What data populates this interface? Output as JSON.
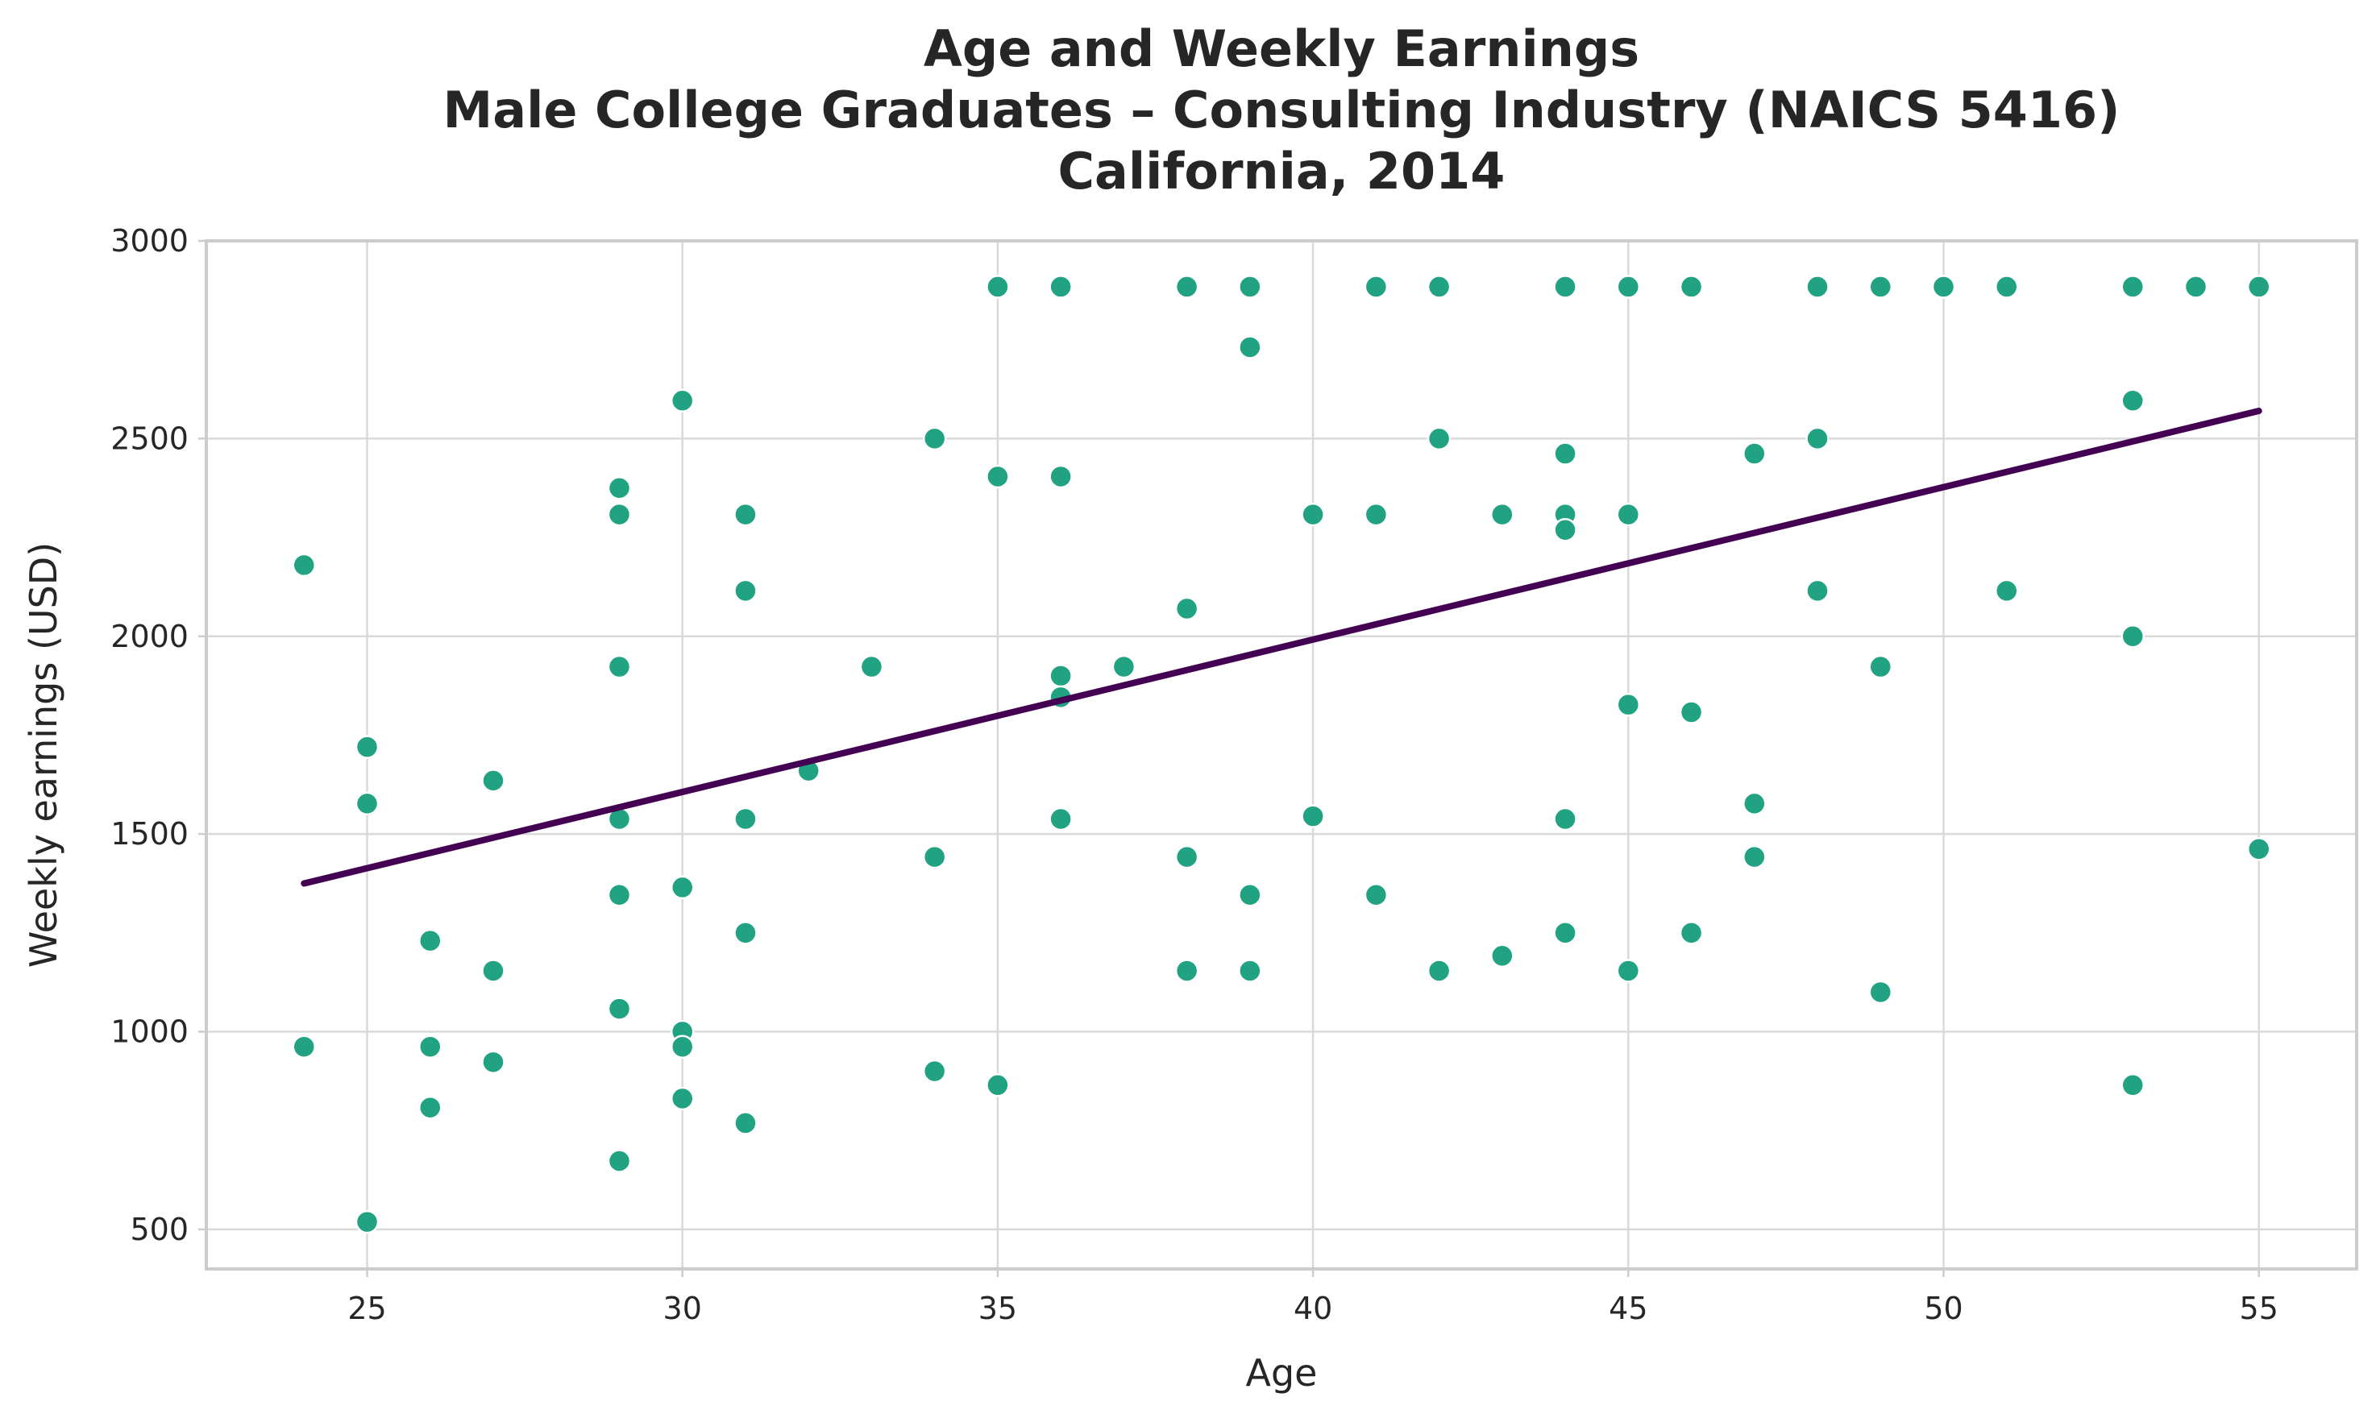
{
  "chart_data": {
    "type": "scatter",
    "title": [
      "Age and Weekly Earnings",
      "Male College Graduates – Consulting Industry (NAICS 5416)",
      "California, 2014"
    ],
    "xlabel": "Age",
    "ylabel": "Weekly earnings (USD)",
    "xlim": [
      22.45,
      56.55
    ],
    "ylim": [
      400,
      3000
    ],
    "xticks": [
      25,
      30,
      35,
      40,
      45,
      50,
      55
    ],
    "yticks": [
      500,
      1000,
      1500,
      2000,
      2500,
      3000
    ],
    "grid": true,
    "point_color": "#21a383",
    "line_color": "#440154",
    "trend_line": {
      "x": [
        24,
        55
      ],
      "y": [
        1375,
        2570
      ]
    },
    "points": [
      {
        "x": 24,
        "y": 2180
      },
      {
        "x": 24,
        "y": 962
      },
      {
        "x": 25,
        "y": 1720
      },
      {
        "x": 25,
        "y": 1577
      },
      {
        "x": 25,
        "y": 519
      },
      {
        "x": 26,
        "y": 1230
      },
      {
        "x": 26,
        "y": 962
      },
      {
        "x": 26,
        "y": 808
      },
      {
        "x": 27,
        "y": 1635
      },
      {
        "x": 27,
        "y": 1154
      },
      {
        "x": 27,
        "y": 923
      },
      {
        "x": 29,
        "y": 2375
      },
      {
        "x": 29,
        "y": 2308
      },
      {
        "x": 29,
        "y": 1923
      },
      {
        "x": 29,
        "y": 1538
      },
      {
        "x": 29,
        "y": 1346
      },
      {
        "x": 29,
        "y": 1058
      },
      {
        "x": 29,
        "y": 673
      },
      {
        "x": 30,
        "y": 2596
      },
      {
        "x": 30,
        "y": 1365
      },
      {
        "x": 30,
        "y": 1000
      },
      {
        "x": 30,
        "y": 962
      },
      {
        "x": 30,
        "y": 831
      },
      {
        "x": 31,
        "y": 2308
      },
      {
        "x": 31,
        "y": 2115
      },
      {
        "x": 31,
        "y": 1538
      },
      {
        "x": 31,
        "y": 1250
      },
      {
        "x": 31,
        "y": 769
      },
      {
        "x": 32,
        "y": 1660
      },
      {
        "x": 33,
        "y": 1923
      },
      {
        "x": 34,
        "y": 2500
      },
      {
        "x": 34,
        "y": 1442
      },
      {
        "x": 34,
        "y": 900
      },
      {
        "x": 35,
        "y": 2884
      },
      {
        "x": 35,
        "y": 2404
      },
      {
        "x": 35,
        "y": 865
      },
      {
        "x": 36,
        "y": 2884
      },
      {
        "x": 36,
        "y": 2404
      },
      {
        "x": 36,
        "y": 1900
      },
      {
        "x": 36,
        "y": 1846
      },
      {
        "x": 36,
        "y": 1538
      },
      {
        "x": 37,
        "y": 1923
      },
      {
        "x": 38,
        "y": 2884
      },
      {
        "x": 38,
        "y": 2070
      },
      {
        "x": 38,
        "y": 1442
      },
      {
        "x": 38,
        "y": 1154
      },
      {
        "x": 39,
        "y": 2884
      },
      {
        "x": 39,
        "y": 2731
      },
      {
        "x": 39,
        "y": 1346
      },
      {
        "x": 39,
        "y": 1154
      },
      {
        "x": 40,
        "y": 2308
      },
      {
        "x": 40,
        "y": 1545
      },
      {
        "x": 41,
        "y": 2884
      },
      {
        "x": 41,
        "y": 2308
      },
      {
        "x": 41,
        "y": 1346
      },
      {
        "x": 42,
        "y": 2884
      },
      {
        "x": 42,
        "y": 2500
      },
      {
        "x": 42,
        "y": 1154
      },
      {
        "x": 43,
        "y": 2308
      },
      {
        "x": 43,
        "y": 1192
      },
      {
        "x": 44,
        "y": 2884
      },
      {
        "x": 44,
        "y": 2462
      },
      {
        "x": 44,
        "y": 2308
      },
      {
        "x": 44,
        "y": 2269
      },
      {
        "x": 44,
        "y": 1538
      },
      {
        "x": 44,
        "y": 1250
      },
      {
        "x": 45,
        "y": 2884
      },
      {
        "x": 45,
        "y": 2308
      },
      {
        "x": 45,
        "y": 1827
      },
      {
        "x": 45,
        "y": 1154
      },
      {
        "x": 46,
        "y": 2884
      },
      {
        "x": 46,
        "y": 1808
      },
      {
        "x": 46,
        "y": 1250
      },
      {
        "x": 47,
        "y": 2462
      },
      {
        "x": 47,
        "y": 1577
      },
      {
        "x": 47,
        "y": 1442
      },
      {
        "x": 48,
        "y": 2884
      },
      {
        "x": 48,
        "y": 2500
      },
      {
        "x": 48,
        "y": 2115
      },
      {
        "x": 49,
        "y": 2884
      },
      {
        "x": 49,
        "y": 1923
      },
      {
        "x": 49,
        "y": 1100
      },
      {
        "x": 50,
        "y": 2884
      },
      {
        "x": 51,
        "y": 2884
      },
      {
        "x": 51,
        "y": 2115
      },
      {
        "x": 53,
        "y": 2884
      },
      {
        "x": 53,
        "y": 2596
      },
      {
        "x": 53,
        "y": 2000
      },
      {
        "x": 53,
        "y": 865
      },
      {
        "x": 54,
        "y": 2884
      },
      {
        "x": 55,
        "y": 2884
      },
      {
        "x": 55,
        "y": 1462
      }
    ]
  }
}
